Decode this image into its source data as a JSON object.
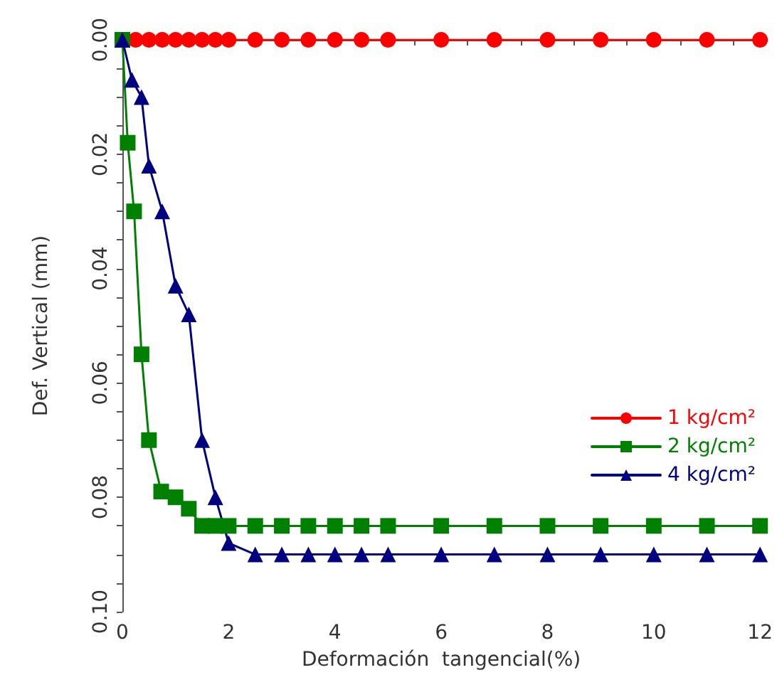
{
  "chart_data": {
    "type": "line",
    "xlabel": "Deformación  tangencial(%)",
    "ylabel": "Def. Vertical (mm)",
    "xlim": [
      0,
      12
    ],
    "ylim": [
      0.1,
      0
    ],
    "xticks": [
      0,
      {
        "value": 0.5,
        "label": null
      },
      {
        "value": 1,
        "label": null
      },
      {
        "value": 1.5,
        "label": null
      },
      2,
      {
        "value": 2.5,
        "label": null
      },
      {
        "value": 3,
        "label": null
      },
      {
        "value": 3.5,
        "label": null
      },
      4,
      {
        "value": 4.5,
        "label": null
      },
      {
        "value": 5,
        "label": null
      },
      {
        "value": 5.5,
        "label": null
      },
      6,
      {
        "value": 6.5,
        "label": null
      },
      {
        "value": 7,
        "label": null
      },
      {
        "value": 7.5,
        "label": null
      },
      8,
      {
        "value": 8.5,
        "label": null
      },
      {
        "value": 9,
        "label": null
      },
      {
        "value": 9.5,
        "label": null
      },
      10,
      {
        "value": 10.5,
        "label": null
      },
      {
        "value": 11,
        "label": null
      },
      {
        "value": 11.5,
        "label": null
      },
      12
    ],
    "yticks": [
      {
        "value": 0,
        "label": "0.00"
      },
      {
        "value": 0.005,
        "label": null
      },
      {
        "value": 0.01,
        "label": null
      },
      {
        "value": 0.015,
        "label": null
      },
      {
        "value": 0.02,
        "label": "0.02"
      },
      {
        "value": 0.025,
        "label": null
      },
      {
        "value": 0.03,
        "label": null
      },
      {
        "value": 0.035,
        "label": null
      },
      {
        "value": 0.04,
        "label": "0.04"
      },
      {
        "value": 0.045,
        "label": null
      },
      {
        "value": 0.05,
        "label": null
      },
      {
        "value": 0.055,
        "label": null
      },
      {
        "value": 0.06,
        "label": "0.06"
      },
      {
        "value": 0.065,
        "label": null
      },
      {
        "value": 0.07,
        "label": null
      },
      {
        "value": 0.075,
        "label": null
      },
      {
        "value": 0.08,
        "label": "0.08"
      },
      {
        "value": 0.085,
        "label": null
      },
      {
        "value": 0.09,
        "label": null
      },
      {
        "value": 0.095,
        "label": null
      },
      {
        "value": 0.1,
        "label": "0.10"
      }
    ],
    "grid": false,
    "legend": "right",
    "line_style": "solid",
    "series": [
      {
        "name": "1 kg/cm²",
        "color": "#ff0000",
        "marker": "circle",
        "x": [
          0,
          0.25,
          0.5,
          0.75,
          1,
          1.25,
          1.5,
          1.75,
          2,
          2.5,
          3,
          3.5,
          4,
          4.5,
          5,
          6,
          7,
          8,
          9,
          10,
          11,
          12
        ],
        "values": [
          0,
          0,
          0,
          0,
          0,
          0,
          0,
          0,
          0,
          0,
          0,
          0,
          0,
          0,
          0,
          0,
          0,
          0,
          0,
          0,
          0,
          0
        ]
      },
      {
        "name": "2 kg/cm²",
        "color": "#008000",
        "marker": "square",
        "x": [
          0,
          0.1,
          0.22,
          0.36,
          0.5,
          0.73,
          1,
          1.25,
          1.5,
          1.75,
          2,
          2.5,
          3,
          3.5,
          4,
          4.5,
          5,
          6,
          7,
          8,
          9,
          10,
          11,
          12
        ],
        "values": [
          0,
          0.018,
          0.03,
          0.055,
          0.07,
          0.079,
          0.08,
          0.082,
          0.085,
          0.085,
          0.085,
          0.085,
          0.085,
          0.085,
          0.085,
          0.085,
          0.085,
          0.085,
          0.085,
          0.085,
          0.085,
          0.085,
          0.085,
          0.085
        ]
      },
      {
        "name": "4 kg/cm²",
        "color": "#000080",
        "marker": "triangle",
        "x": [
          0,
          0.18,
          0.36,
          0.5,
          0.75,
          1,
          1.25,
          1.5,
          1.75,
          2,
          2.5,
          3,
          3.5,
          4,
          4.5,
          5,
          6,
          7,
          8,
          9,
          10,
          11,
          12
        ],
        "values": [
          0,
          0.007,
          0.01,
          0.022,
          0.03,
          0.043,
          0.048,
          0.07,
          0.08,
          0.088,
          0.09,
          0.09,
          0.09,
          0.09,
          0.09,
          0.09,
          0.09,
          0.09,
          0.09,
          0.09,
          0.09,
          0.09,
          0.09
        ]
      }
    ]
  }
}
